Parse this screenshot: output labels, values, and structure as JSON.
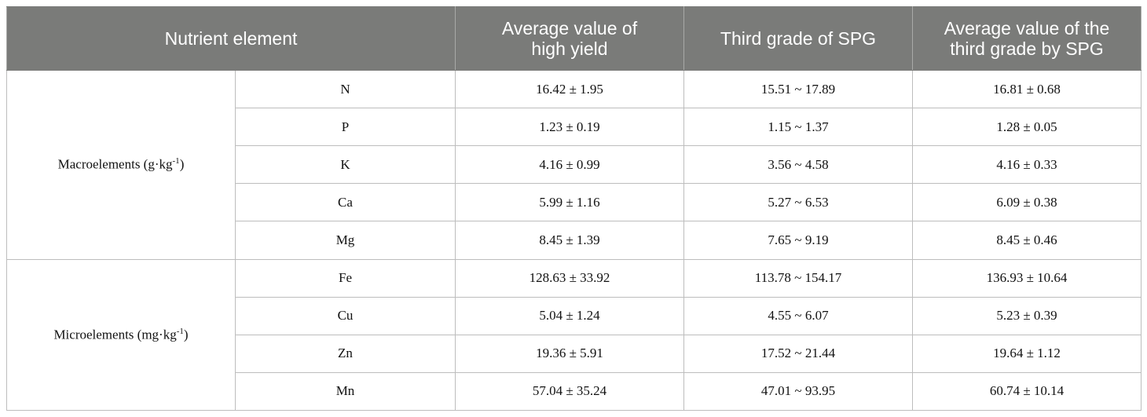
{
  "headers": {
    "nutrient": "Nutrient element",
    "avg_high_yield_l1": "Average value of",
    "avg_high_yield_l2": "high yield",
    "third_grade": "Third grade of SPG",
    "avg_third_l1": "Average value of the",
    "avg_third_l2": "third grade by SPG"
  },
  "groups": {
    "macro_label": "Macroelements (g·kg",
    "macro_unit_exp": "-1",
    "macro_close": ")",
    "micro_label": "Microelements (mg·kg",
    "micro_unit_exp": "-1",
    "micro_close": ")"
  },
  "rows": [
    {
      "el": "N",
      "avg": "16.42 ± 1.95",
      "range": "15.51 ~ 17.89",
      "third": "16.81 ± 0.68"
    },
    {
      "el": "P",
      "avg": "1.23 ± 0.19",
      "range": "1.15 ~ 1.37",
      "third": "1.28 ± 0.05"
    },
    {
      "el": "K",
      "avg": "4.16 ± 0.99",
      "range": "3.56 ~ 4.58",
      "third": "4.16 ± 0.33"
    },
    {
      "el": "Ca",
      "avg": "5.99 ± 1.16",
      "range": "5.27 ~ 6.53",
      "third": "6.09 ± 0.38"
    },
    {
      "el": "Mg",
      "avg": "8.45 ± 1.39",
      "range": "7.65 ~ 9.19",
      "third": "8.45 ± 0.46"
    },
    {
      "el": "Fe",
      "avg": "128.63 ± 33.92",
      "range": "113.78 ~ 154.17",
      "third": "136.93 ± 10.64"
    },
    {
      "el": "Cu",
      "avg": "5.04 ± 1.24",
      "range": "4.55 ~ 6.07",
      "third": "5.23 ± 0.39"
    },
    {
      "el": "Zn",
      "avg": "19.36 ± 5.91",
      "range": "17.52 ~ 21.44",
      "third": "19.64 ± 1.12"
    },
    {
      "el": "Mn",
      "avg": "57.04 ± 35.24",
      "range": "47.01 ~ 93.95",
      "third": "60.74 ± 10.14"
    }
  ]
}
